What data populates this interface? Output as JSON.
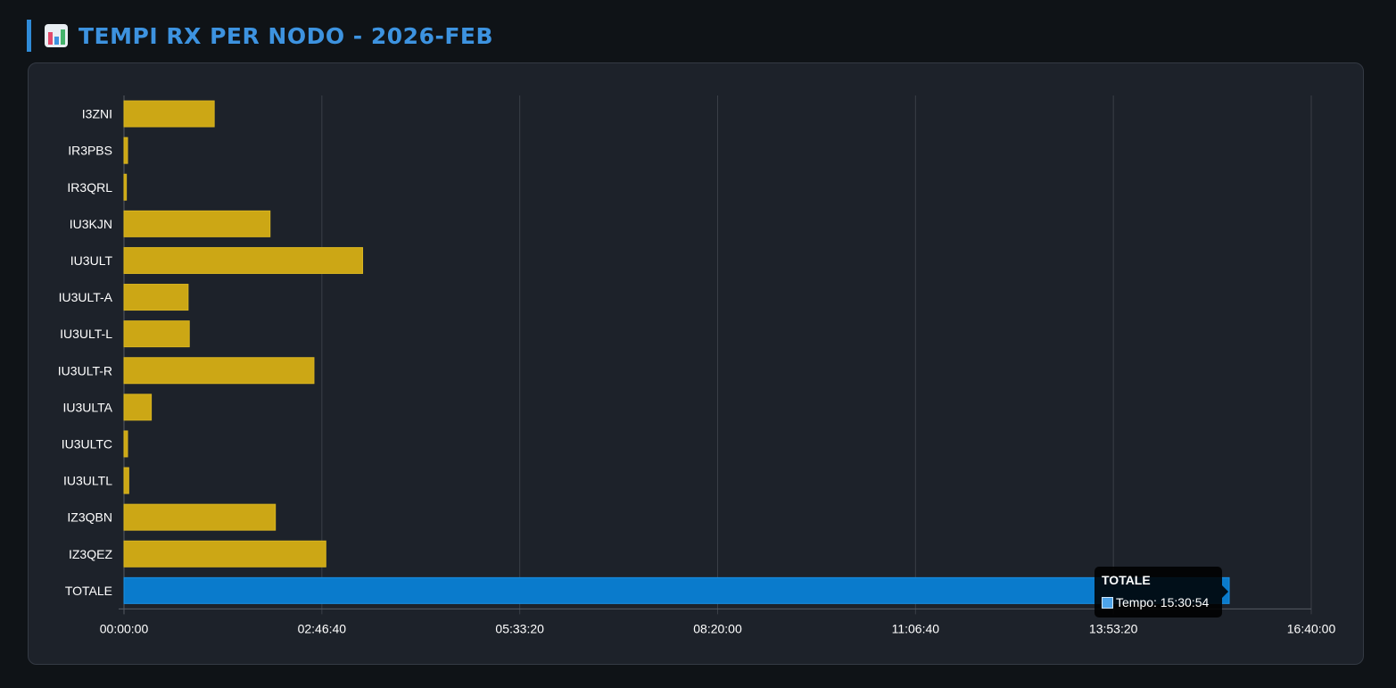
{
  "header": {
    "title": "TEMPI RX PER NODO - 2026-FEB",
    "icon": "bar-chart-icon"
  },
  "colors": {
    "background": "#0f1317",
    "panel": "#1d222a",
    "bar": "#cca715",
    "bar_highlight": "#0a7bcc",
    "title": "#3d93e0",
    "grid": "#3a3f47",
    "text": "#ffffff"
  },
  "chart_data": {
    "type": "bar",
    "orientation": "horizontal",
    "categories": [
      "I3ZNI",
      "IR3PBS",
      "IR3QRL",
      "IU3KJN",
      "IU3ULT",
      "IU3ULT-A",
      "IU3ULT-L",
      "IU3ULT-R",
      "IU3ULTA",
      "IU3ULTC",
      "IU3ULTL",
      "IZ3QBN",
      "IZ3QEZ",
      "TOTALE"
    ],
    "series": [
      {
        "name": "Tempo",
        "values_seconds": [
          4560,
          180,
          120,
          7380,
          12060,
          3240,
          3300,
          9600,
          1380,
          180,
          240,
          7650,
          10200,
          55854
        ]
      }
    ],
    "x_ticks": [
      "00:00:00",
      "02:46:40",
      "05:33:20",
      "08:20:00",
      "11:06:40",
      "13:53:20",
      "16:40:00"
    ],
    "xlim_seconds": [
      0,
      60000
    ],
    "x_tick_step_seconds": 10000,
    "grid": true,
    "highlighted_category": "TOTALE",
    "tooltip": {
      "title": "TOTALE",
      "label": "Tempo: 15:30:54"
    }
  }
}
